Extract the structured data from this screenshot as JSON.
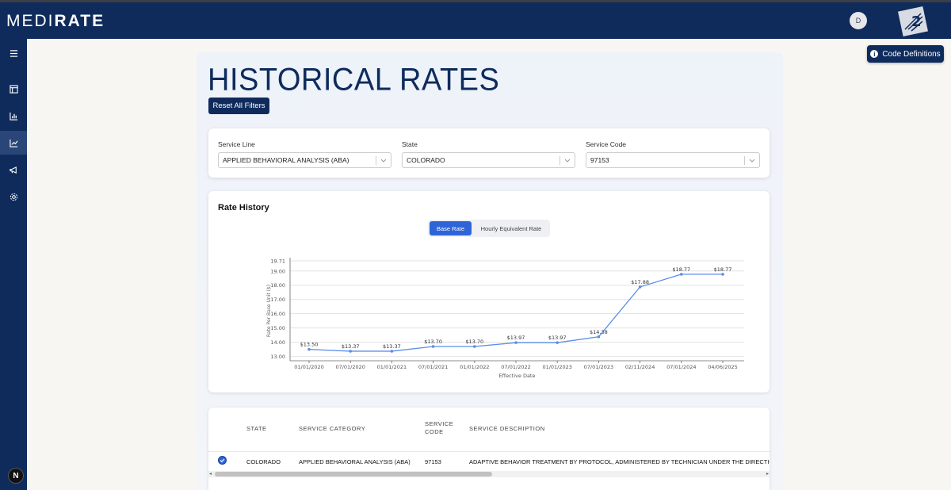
{
  "header": {
    "logo_prefix": "MEDI",
    "logo_suffix": "RATE",
    "user_initial": "D"
  },
  "sidebar": {
    "items": [
      {
        "icon": "menu-icon"
      },
      {
        "icon": "table-icon"
      },
      {
        "icon": "bar-chart-icon"
      },
      {
        "icon": "line-chart-icon",
        "active": true
      },
      {
        "icon": "megaphone-icon"
      },
      {
        "icon": "gear-icon"
      }
    ],
    "badge": "N"
  },
  "code_definitions_label": "Code Definitions",
  "page_title": "HISTORICAL RATES",
  "reset_label": "Reset All Filters",
  "filters": {
    "service_line": {
      "label": "Service Line",
      "value": "APPLIED BEHAVIORAL ANALYSIS (ABA)"
    },
    "state": {
      "label": "State",
      "value": "COLORADO"
    },
    "service_code": {
      "label": "Service Code",
      "value": "97153"
    }
  },
  "chart_card": {
    "title": "Rate History",
    "toggle": [
      "Base Rate",
      "Hourly Equivalent Rate"
    ],
    "toggle_active": 0
  },
  "chart_data": {
    "type": "line",
    "categories": [
      "01/01/2020",
      "07/01/2020",
      "01/01/2021",
      "07/01/2021",
      "01/01/2022",
      "07/01/2022",
      "01/01/2023",
      "07/01/2023",
      "02/11/2024",
      "07/01/2024",
      "04/06/2025"
    ],
    "values": [
      13.5,
      13.37,
      13.37,
      13.7,
      13.7,
      13.97,
      13.97,
      14.38,
      17.88,
      18.77,
      18.77
    ],
    "data_labels": [
      "$13.50",
      "$13.37",
      "$13.37",
      "$13.70",
      "$13.70",
      "$13.97",
      "$13.97",
      "$14.38",
      "$17.88",
      "$18.77",
      "$18.77"
    ],
    "xlabel": "Effective Date",
    "ylabel": "Rate Per Base Unit ($)",
    "yticks": [
      "13.00",
      "14.00",
      "15.00",
      "16.00",
      "17.00",
      "18.00",
      "19.00",
      "19.71"
    ],
    "ylim": [
      12.7,
      19.71
    ],
    "grid": true,
    "line_color": "#5b8ee6"
  },
  "table": {
    "headers": {
      "state": "STATE",
      "category": "SERVICE CATEGORY",
      "code": "SERVICE CODE",
      "description": "SERVICE DESCRIPTION"
    },
    "rows": [
      {
        "state": "COLORADO",
        "category": "APPLIED BEHAVIORAL ANALYSIS (ABA)",
        "code": "97153",
        "description": "ADAPTIVE BEHAVIOR TREATMENT BY PROTOCOL, ADMINISTERED BY TECHNICIAN UNDER THE DIRECTION OF",
        "selected": true
      }
    ]
  },
  "colors": {
    "navy": "#0e2b5c",
    "accent": "#2e64d8"
  }
}
